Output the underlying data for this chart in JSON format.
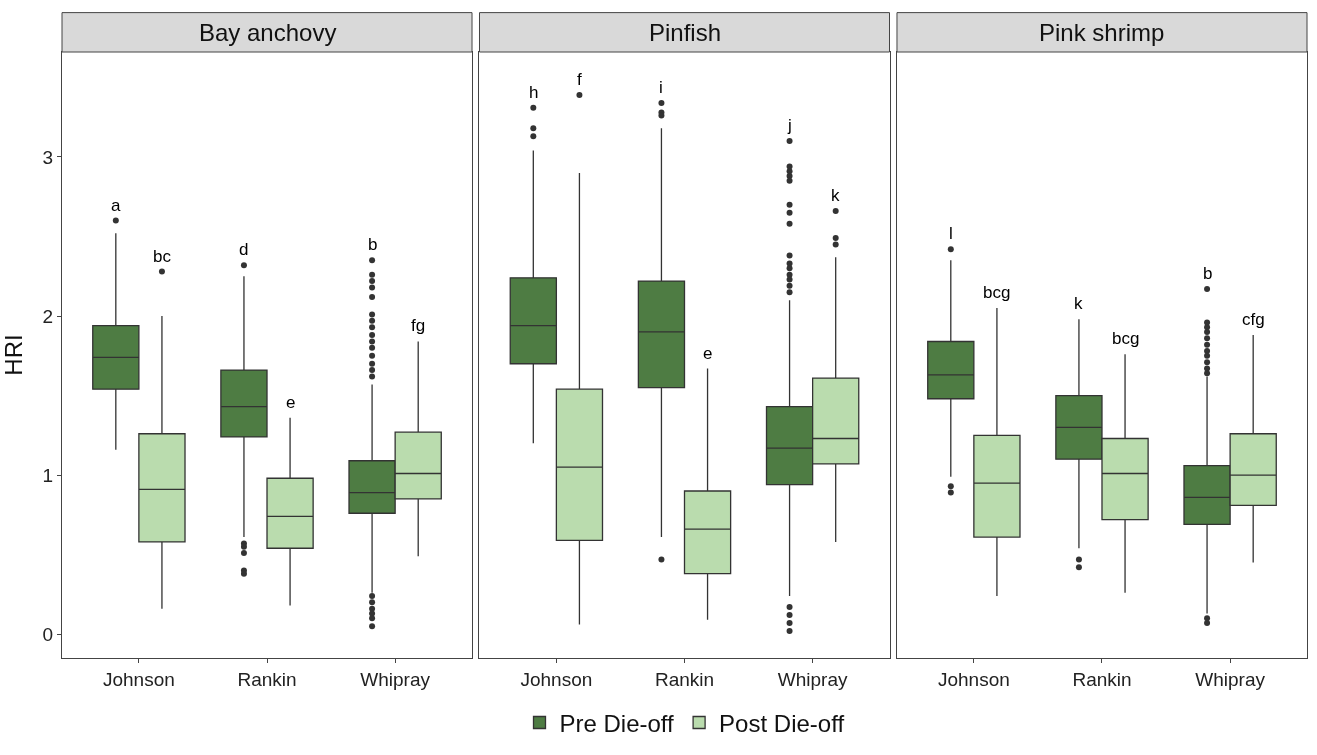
{
  "chart_data": [
    {
      "type": "box",
      "title": "Bay anchovy",
      "ylabel": "HRI",
      "categories": [
        "Johnson",
        "Rankin",
        "Whipray"
      ],
      "ylim": [
        -0.15,
        3.66
      ],
      "yticks": [
        0,
        1,
        2,
        3
      ],
      "legend": "bottom",
      "series": [
        {
          "name": "Pre Die-off",
          "color": "#4e7c43",
          "boxes": [
            {
              "low": 1.16,
              "q1": 1.54,
              "median": 1.74,
              "q3": 1.94,
              "high": 2.52,
              "outliers": [
                2.6
              ]
            },
            {
              "low": 0.61,
              "q1": 1.24,
              "median": 1.43,
              "q3": 1.66,
              "high": 2.25,
              "outliers": [
                2.32,
                0.57,
                0.55,
                0.51,
                0.4,
                0.38
              ]
            },
            {
              "low": 0.26,
              "q1": 0.76,
              "median": 0.89,
              "q3": 1.09,
              "high": 1.57,
              "outliers": [
                2.35,
                2.26,
                2.22,
                2.18,
                2.12,
                2.01,
                1.97,
                1.93,
                1.88,
                1.84,
                1.8,
                1.75,
                1.7,
                1.66,
                1.62,
                0.24,
                0.2,
                0.16,
                0.13,
                0.1,
                0.05
              ]
            }
          ]
        },
        {
          "name": "Post Die-off",
          "color": "#badcae",
          "boxes": [
            {
              "low": 0.16,
              "q1": 0.58,
              "median": 0.91,
              "q3": 1.26,
              "high": 2.0,
              "outliers": [
                2.28
              ]
            },
            {
              "low": 0.18,
              "q1": 0.54,
              "median": 0.74,
              "q3": 0.98,
              "high": 1.36
            },
            {
              "low": 0.49,
              "q1": 0.85,
              "median": 1.01,
              "q3": 1.27,
              "high": 1.84
            }
          ]
        }
      ],
      "annotations": [
        "a",
        "bc",
        "d",
        "e",
        "b",
        "fg"
      ]
    },
    {
      "type": "box",
      "title": "Pinfish",
      "categories": [
        "Johnson",
        "Rankin",
        "Whipray"
      ],
      "ylim": [
        -0.15,
        3.66
      ],
      "yticks": [
        0,
        1,
        2,
        3
      ],
      "tick_labels": "x",
      "series": [
        {
          "name": "Pre Die-off",
          "color": "#4e7c43",
          "boxes": [
            {
              "low": 1.2,
              "q1": 1.7,
              "median": 1.94,
              "q3": 2.24,
              "high": 3.04,
              "outliers": [
                3.31,
                3.18,
                3.13
              ]
            },
            {
              "low": 0.61,
              "q1": 1.55,
              "median": 1.9,
              "q3": 2.22,
              "high": 3.18,
              "outliers": [
                3.34,
                3.28,
                3.26,
                0.47
              ]
            },
            {
              "low": 0.24,
              "q1": 0.94,
              "median": 1.17,
              "q3": 1.43,
              "high": 2.1,
              "outliers": [
                3.1,
                2.94,
                2.91,
                2.88,
                2.85,
                2.7,
                2.65,
                2.58,
                2.38,
                2.33,
                2.3,
                2.26,
                2.23,
                2.19,
                2.15,
                0.17,
                0.12,
                0.07,
                0.02
              ]
            }
          ]
        },
        {
          "name": "Post Die-off",
          "color": "#badcae",
          "boxes": [
            {
              "low": 0.06,
              "q1": 0.59,
              "median": 1.05,
              "q3": 1.54,
              "high": 2.9,
              "outliers": [
                3.39
              ]
            },
            {
              "low": 0.09,
              "q1": 0.38,
              "median": 0.66,
              "q3": 0.9,
              "high": 1.67
            },
            {
              "low": 0.58,
              "q1": 1.07,
              "median": 1.23,
              "q3": 1.61,
              "high": 2.37,
              "outliers": [
                2.66,
                2.49,
                2.45
              ]
            }
          ]
        }
      ],
      "annotations": [
        "h",
        "f",
        "i",
        "e",
        "j",
        "k"
      ]
    },
    {
      "type": "box",
      "title": "Pink shrimp",
      "categories": [
        "Johnson",
        "Rankin",
        "Whipray"
      ],
      "ylim": [
        -0.15,
        3.66
      ],
      "yticks": [
        0,
        1,
        2,
        3
      ],
      "tick_labels": "x",
      "series": [
        {
          "name": "Pre Die-off",
          "color": "#4e7c43",
          "boxes": [
            {
              "low": 0.99,
              "q1": 1.48,
              "median": 1.63,
              "q3": 1.84,
              "high": 2.35,
              "outliers": [
                2.42,
                0.93,
                0.89
              ]
            },
            {
              "low": 0.54,
              "q1": 1.1,
              "median": 1.3,
              "q3": 1.5,
              "high": 1.98,
              "outliers": [
                0.47,
                0.42
              ]
            },
            {
              "low": 0.13,
              "q1": 0.69,
              "median": 0.86,
              "q3": 1.06,
              "high": 1.62,
              "outliers": [
                2.17,
                1.96,
                1.93,
                1.9,
                1.86,
                1.82,
                1.78,
                1.75,
                1.71,
                1.67,
                1.64,
                0.1,
                0.07
              ]
            }
          ]
        },
        {
          "name": "Post Die-off",
          "color": "#badcae",
          "boxes": [
            {
              "low": 0.24,
              "q1": 0.61,
              "median": 0.95,
              "q3": 1.25,
              "high": 2.05
            },
            {
              "low": 0.26,
              "q1": 0.72,
              "median": 1.01,
              "q3": 1.23,
              "high": 1.76
            },
            {
              "low": 0.45,
              "q1": 0.81,
              "median": 1.0,
              "q3": 1.26,
              "high": 1.88
            }
          ]
        }
      ],
      "annotations": [
        "l",
        "bcg",
        "k",
        "bcg",
        "b",
        "cfg"
      ]
    }
  ]
}
